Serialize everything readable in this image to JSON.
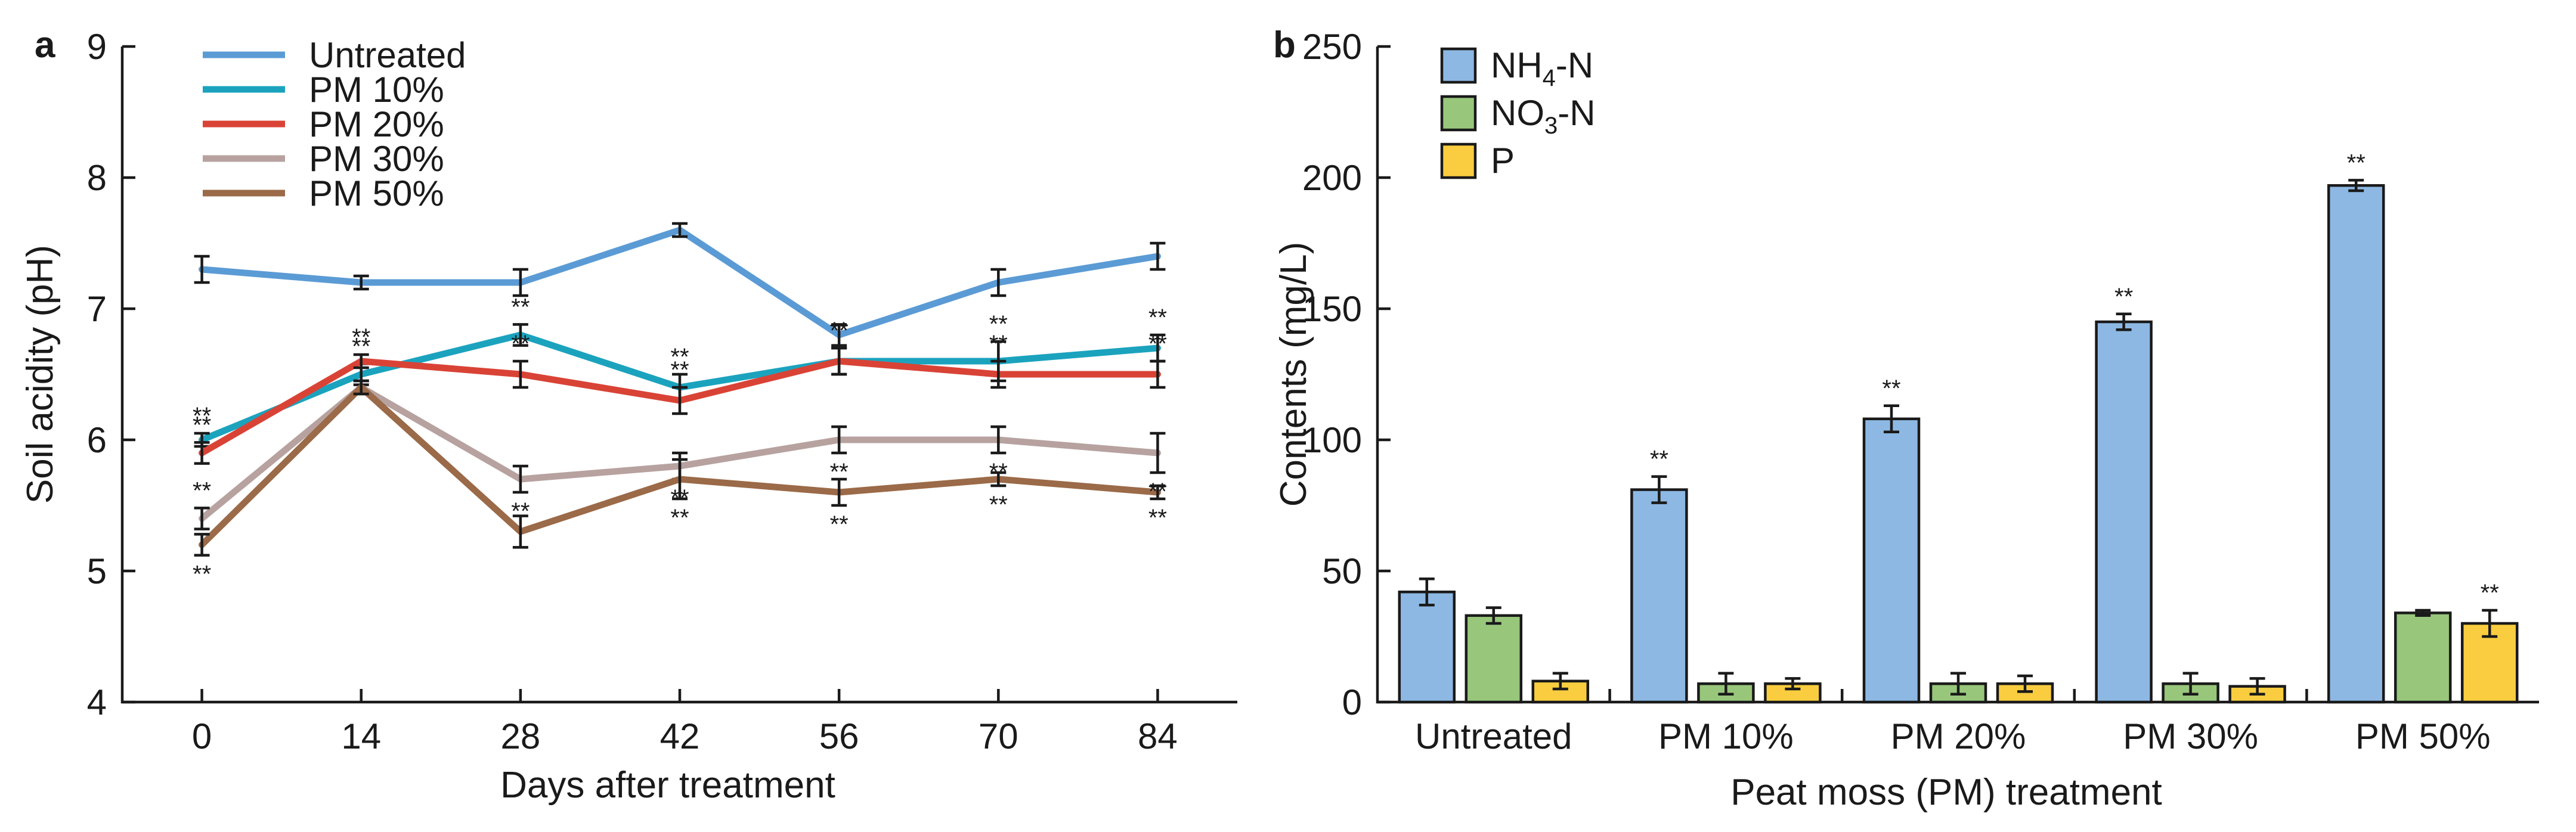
{
  "chart_data": [
    {
      "panel": "a",
      "type": "line",
      "xlabel": "Days after treatment",
      "ylabel": "Soil acidity (pH)",
      "x": [
        0,
        14,
        28,
        42,
        56,
        70,
        84
      ],
      "xticks": [
        "0",
        "14",
        "28",
        "42",
        "56",
        "70",
        "84"
      ],
      "xlim": [
        -7,
        91
      ],
      "ylim": [
        4,
        9
      ],
      "yticks": [
        "4",
        "5",
        "6",
        "7",
        "8",
        "9"
      ],
      "grid": false,
      "legend": "top-left",
      "significance_mark": "**",
      "series": [
        {
          "name": "Untreated",
          "color": "#5b9bd5",
          "values": [
            7.3,
            7.2,
            7.2,
            7.6,
            6.8,
            7.2,
            7.4
          ],
          "errors": [
            0.1,
            0.05,
            0.1,
            0.05,
            0.08,
            0.1,
            0.1
          ],
          "sig": [
            false,
            false,
            false,
            false,
            false,
            false,
            false
          ]
        },
        {
          "name": "PM 10%",
          "color": "#1ba3be",
          "values": [
            6.0,
            6.5,
            6.8,
            6.4,
            6.6,
            6.6,
            6.7
          ],
          "errors": [
            0.05,
            0.08,
            0.08,
            0.1,
            0.1,
            0.15,
            0.1
          ],
          "sig": [
            true,
            true,
            true,
            true,
            true,
            true,
            true
          ]
        },
        {
          "name": "PM 20%",
          "color": "#d94336",
          "values": [
            5.9,
            6.6,
            6.5,
            6.3,
            6.6,
            6.5,
            6.5
          ],
          "errors": [
            0.08,
            0.05,
            0.1,
            0.1,
            0.1,
            0.1,
            0.1
          ],
          "sig": [
            true,
            true,
            true,
            true,
            true,
            true,
            true
          ]
        },
        {
          "name": "PM 30%",
          "color": "#b7a2a0",
          "values": [
            5.4,
            6.4,
            5.7,
            5.8,
            6.0,
            6.0,
            5.9
          ],
          "errors": [
            0.08,
            0.05,
            0.1,
            0.1,
            0.1,
            0.1,
            0.15
          ],
          "sig": [
            true,
            false,
            true,
            true,
            true,
            true,
            true
          ]
        },
        {
          "name": "PM 50%",
          "color": "#9b6a48",
          "values": [
            5.2,
            6.4,
            5.3,
            5.7,
            5.6,
            5.7,
            5.6
          ],
          "errors": [
            0.08,
            0.05,
            0.12,
            0.15,
            0.1,
            0.05,
            0.05
          ],
          "sig": [
            true,
            false,
            false,
            true,
            true,
            true,
            true
          ]
        }
      ]
    },
    {
      "panel": "b",
      "type": "bar",
      "xlabel": "Peat moss (PM) treatment",
      "ylabel": "Contents (mg/L)",
      "categories": [
        "Untreated",
        "PM 10%",
        "PM 20%",
        "PM 30%",
        "PM 50%"
      ],
      "ylim": [
        0,
        250
      ],
      "yticks": [
        "0",
        "50",
        "100",
        "150",
        "200",
        "250"
      ],
      "grid": false,
      "legend": "top-left",
      "significance_mark": "**",
      "series": [
        {
          "name": "NH4-N",
          "label_main": "NH",
          "label_sub": "4",
          "label_tail": "-N",
          "color": "#8db8e3",
          "values": [
            42,
            81,
            108,
            145,
            197
          ],
          "errors": [
            5,
            5,
            5,
            3,
            2
          ],
          "sig": [
            false,
            true,
            true,
            true,
            true
          ]
        },
        {
          "name": "NO3-N",
          "label_main": "NO",
          "label_sub": "3",
          "label_tail": "-N",
          "color": "#98c77c",
          "values": [
            33,
            7,
            7,
            7,
            34
          ],
          "errors": [
            3,
            4,
            4,
            4,
            1
          ],
          "sig": [
            false,
            false,
            false,
            false,
            false
          ]
        },
        {
          "name": "P",
          "label_main": "P",
          "label_sub": "",
          "label_tail": "",
          "color": "#f9cd3f",
          "values": [
            8,
            7,
            7,
            6,
            30
          ],
          "errors": [
            3,
            2,
            3,
            3,
            5
          ],
          "sig": [
            false,
            false,
            false,
            false,
            true
          ]
        }
      ]
    }
  ]
}
